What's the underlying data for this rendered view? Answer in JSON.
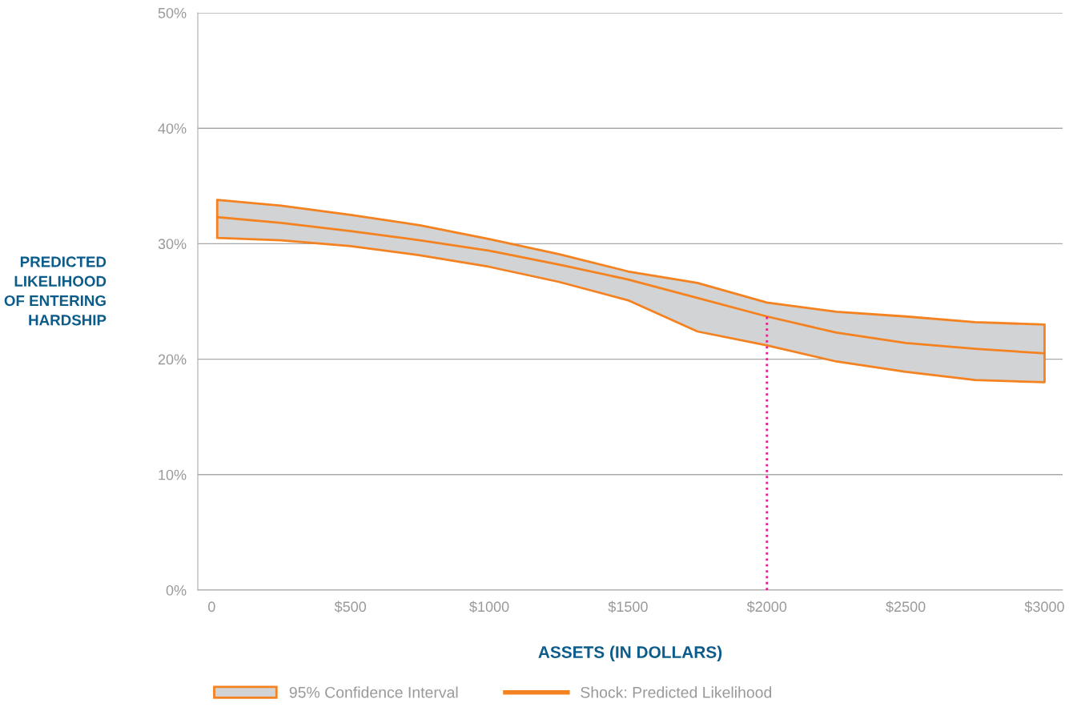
{
  "chart_data": {
    "type": "line",
    "xlabel": "ASSETS (IN DOLLARS)",
    "ylabel": "PREDICTED\nLIKELIHOOD\nOF ENTERING\nHARDSHIP",
    "x": [
      20,
      250,
      500,
      750,
      1000,
      1250,
      1500,
      1750,
      2000,
      2250,
      2500,
      2750,
      3000
    ],
    "series": [
      {
        "name": "Shock: Predicted Likelihood",
        "color": "#f58220",
        "values": [
          32.3,
          31.8,
          31.1,
          30.3,
          29.4,
          28.2,
          26.9,
          25.3,
          23.7,
          22.3,
          21.4,
          20.9,
          20.5
        ],
        "lower": [
          30.5,
          30.3,
          29.8,
          29.0,
          28.0,
          26.7,
          25.1,
          22.4,
          21.2,
          19.8,
          18.9,
          18.2,
          18.0
        ],
        "upper": [
          33.8,
          33.3,
          32.5,
          31.6,
          30.4,
          29.1,
          27.6,
          26.6,
          24.9,
          24.1,
          23.7,
          23.2,
          23.0
        ]
      }
    ],
    "annotations": [
      "95% Confidence Interval"
    ],
    "ref_lines": [
      {
        "axis": "x",
        "value": 2000,
        "color": "#ec1c8c",
        "line_style": "dotted"
      }
    ],
    "xlim": [
      -50,
      3065
    ],
    "xticks": [
      {
        "value": 0,
        "label": "0"
      },
      {
        "value": 500,
        "label": "$500"
      },
      {
        "value": 1000,
        "label": "$1000"
      },
      {
        "value": 1500,
        "label": "$1500"
      },
      {
        "value": 2000,
        "label": "$2000"
      },
      {
        "value": 2500,
        "label": "$2500"
      },
      {
        "value": 3000,
        "label": "$3000"
      }
    ],
    "ylim": [
      0,
      50
    ],
    "yticks": [
      {
        "value": 0,
        "label": "0%"
      },
      {
        "value": 10,
        "label": "10%"
      },
      {
        "value": 20,
        "label": "20%"
      },
      {
        "value": 30,
        "label": "30%"
      },
      {
        "value": 40,
        "label": "40%"
      },
      {
        "value": 50,
        "label": "50%"
      }
    ],
    "grid": "y",
    "legend": "bottom"
  }
}
